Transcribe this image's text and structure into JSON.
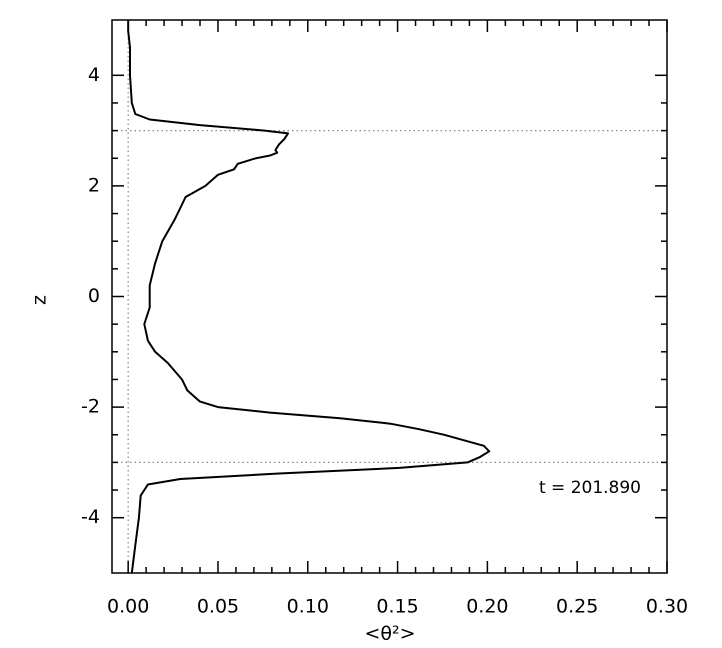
{
  "chart_data": {
    "type": "line",
    "xlabel": "<θ²>",
    "ylabel": "z",
    "annotation": "t = 201.890",
    "series": [
      {
        "color": "#000000",
        "x": [
          0.0,
          0.0,
          0.001,
          0.001,
          0.002,
          0.004,
          0.012,
          0.04,
          0.076,
          0.089,
          0.087,
          0.084,
          0.082,
          0.083,
          0.079,
          0.071,
          0.061,
          0.059,
          0.05,
          0.043,
          0.032,
          0.029,
          0.026,
          0.019,
          0.015,
          0.012,
          0.012,
          0.009,
          0.011,
          0.015,
          0.022,
          0.03,
          0.033,
          0.04,
          0.05,
          0.079,
          0.118,
          0.146,
          0.162,
          0.176,
          0.187,
          0.198,
          0.201,
          0.196,
          0.189,
          0.151,
          0.084,
          0.029,
          0.011,
          0.007,
          0.006,
          0.004,
          0.002
        ],
        "y": [
          5.0,
          4.8,
          4.5,
          4.0,
          3.5,
          3.3,
          3.2,
          3.1,
          3.0,
          2.95,
          2.85,
          2.75,
          2.65,
          2.6,
          2.55,
          2.5,
          2.4,
          2.3,
          2.2,
          2.0,
          1.8,
          1.6,
          1.4,
          1.0,
          0.6,
          0.2,
          -0.2,
          -0.5,
          -0.8,
          -1.0,
          -1.2,
          -1.5,
          -1.7,
          -1.9,
          -2.0,
          -2.1,
          -2.2,
          -2.3,
          -2.4,
          -2.5,
          -2.6,
          -2.7,
          -2.8,
          -2.9,
          -3.0,
          -3.1,
          -3.2,
          -3.3,
          -3.4,
          -3.6,
          -4.0,
          -4.5,
          -5.0
        ]
      }
    ],
    "xlim": [
      -0.009,
      0.3
    ],
    "ylim": [
      -5,
      5
    ],
    "xticks": [
      {
        "value": 0,
        "label": "0.00"
      },
      {
        "value": 0.05,
        "label": "0.05"
      },
      {
        "value": 0.1,
        "label": "0.10"
      },
      {
        "value": 0.15,
        "label": "0.15"
      },
      {
        "value": 0.2,
        "label": "0.20"
      },
      {
        "value": 0.25,
        "label": "0.25"
      },
      {
        "value": 0.3,
        "label": "0.30"
      }
    ],
    "yticks": [
      -4,
      -2,
      0,
      2,
      4
    ],
    "hlines": [
      3,
      -3
    ],
    "vlines": [
      0
    ]
  }
}
